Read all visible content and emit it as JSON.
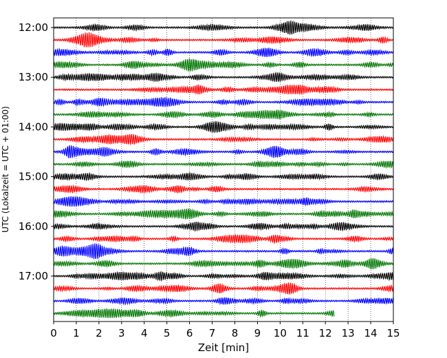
{
  "chart_data": {
    "type": "line",
    "title": "",
    "xlabel": "Zeit  [min]",
    "ylabel": "UTC (Lokalzeit = UTC + 01:00)",
    "xlim": [
      0,
      15
    ],
    "x_ticks": [
      "0",
      "1",
      "2",
      "3",
      "4",
      "5",
      "6",
      "7",
      "8",
      "9",
      "10",
      "11",
      "12",
      "13",
      "14",
      "15"
    ],
    "y_ticks": [
      {
        "label": "12:00",
        "row": 0
      },
      {
        "label": "13:00",
        "row": 4
      },
      {
        "label": "14:00",
        "row": 8
      },
      {
        "label": "15:00",
        "row": 12
      },
      {
        "label": "16:00",
        "row": 16
      },
      {
        "label": "17:00",
        "row": 20
      }
    ],
    "grid": "vertical-dotted",
    "row_interval_minutes": 15,
    "trace_colors": [
      "#000000",
      "#ff0000",
      "#0000ff",
      "#007700"
    ],
    "traces": [
      {
        "start": "12:00",
        "end_minute": 15
      },
      {
        "start": "12:15",
        "end_minute": 15
      },
      {
        "start": "12:30",
        "end_minute": 15
      },
      {
        "start": "12:45",
        "end_minute": 15
      },
      {
        "start": "13:00",
        "end_minute": 15
      },
      {
        "start": "13:15",
        "end_minute": 15
      },
      {
        "start": "13:30",
        "end_minute": 15
      },
      {
        "start": "13:45",
        "end_minute": 15
      },
      {
        "start": "14:00",
        "end_minute": 15
      },
      {
        "start": "14:15",
        "end_minute": 15
      },
      {
        "start": "14:30",
        "end_minute": 15
      },
      {
        "start": "14:45",
        "end_minute": 15
      },
      {
        "start": "15:00",
        "end_minute": 15
      },
      {
        "start": "15:15",
        "end_minute": 15
      },
      {
        "start": "15:30",
        "end_minute": 15
      },
      {
        "start": "15:45",
        "end_minute": 15
      },
      {
        "start": "16:00",
        "end_minute": 15
      },
      {
        "start": "16:15",
        "end_minute": 15
      },
      {
        "start": "16:30",
        "end_minute": 15
      },
      {
        "start": "16:45",
        "end_minute": 15
      },
      {
        "start": "17:00",
        "end_minute": 15
      },
      {
        "start": "17:15",
        "end_minute": 15
      },
      {
        "start": "17:30",
        "end_minute": 15
      },
      {
        "start": "17:45",
        "end_minute": 12.4
      }
    ]
  }
}
